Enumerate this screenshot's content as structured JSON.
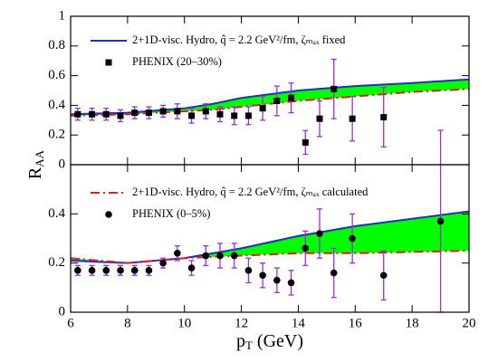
{
  "chart_data": [
    {
      "type": "line",
      "ylabel": {
        "main": "R",
        "sub": "AA"
      },
      "xlim": [
        6,
        20
      ],
      "xticks": [
        6,
        8,
        10,
        12,
        14,
        16,
        18,
        20
      ],
      "ylim": [
        0,
        1
      ],
      "yticks": [
        0,
        0.2,
        0.4,
        0.6,
        0.8,
        1
      ],
      "band_color": "#00ff00",
      "x": [
        6,
        8,
        10,
        11,
        12,
        14,
        16,
        18,
        20
      ],
      "series": [
        {
          "name": "2+1D-visc. Hydro, q̂ = 2.2 GeV²/fm, ζₘₐₓ fixed",
          "color": "#1f2fbf",
          "style": "solid",
          "values": [
            0.34,
            0.35,
            0.38,
            0.41,
            0.45,
            0.5,
            0.53,
            0.55,
            0.575
          ]
        },
        {
          "color": "#e02020",
          "style": "dashdot",
          "values": [
            0.33,
            0.34,
            0.36,
            0.37,
            0.39,
            0.43,
            0.46,
            0.49,
            0.51
          ]
        }
      ],
      "points": {
        "name": "PHENIX (20–30%)",
        "marker": "square",
        "color": "#000000",
        "error_color": "#9b30d9",
        "x": [
          6.25,
          6.75,
          7.25,
          7.75,
          8.25,
          8.75,
          9.25,
          9.75,
          10.25,
          10.75,
          11.25,
          11.75,
          12.25,
          12.75,
          13.25,
          13.75,
          14.25,
          14.75,
          15.25,
          15.9,
          17
        ],
        "values": [
          0.34,
          0.34,
          0.34,
          0.33,
          0.35,
          0.35,
          0.36,
          0.36,
          0.33,
          0.36,
          0.34,
          0.33,
          0.33,
          0.38,
          0.43,
          0.45,
          0.15,
          0.31,
          0.51,
          0.31,
          0.32
        ],
        "errors": [
          0.04,
          0.04,
          0.04,
          0.04,
          0.04,
          0.04,
          0.04,
          0.05,
          0.05,
          0.05,
          0.05,
          0.06,
          0.06,
          0.08,
          0.1,
          0.1,
          0.08,
          0.12,
          0.2,
          0.15,
          0.2
        ]
      }
    },
    {
      "type": "line",
      "xlabel": {
        "main": "p",
        "sub": "T",
        "rest": " (GeV)"
      },
      "xlim": [
        6,
        20
      ],
      "xticks": [
        6,
        8,
        10,
        12,
        14,
        16,
        18,
        20
      ],
      "ylim": [
        0,
        0.6
      ],
      "yticks": [
        0,
        0.2,
        0.4
      ],
      "band_color": "#00ff00",
      "x": [
        6,
        8,
        10,
        12,
        14,
        16,
        18,
        20
      ],
      "series": [
        {
          "color": "#1f2fbf",
          "style": "solid",
          "values": [
            0.21,
            0.2,
            0.22,
            0.26,
            0.31,
            0.35,
            0.38,
            0.41
          ]
        },
        {
          "name": "2+1D-visc. Hydro, q̂ = 2.2 GeV²/fm, ζₘₐₓ calculated",
          "color": "#e02020",
          "style": "dashdot",
          "values": [
            0.22,
            0.2,
            0.22,
            0.23,
            0.24,
            0.24,
            0.245,
            0.25
          ]
        }
      ],
      "points": {
        "name": "PHENIX (0–5%)",
        "marker": "circle",
        "color": "#000000",
        "error_color": "#9b30d9",
        "x": [
          6.25,
          6.75,
          7.25,
          7.75,
          8.25,
          8.75,
          9.25,
          9.75,
          10.25,
          10.75,
          11.25,
          11.75,
          12.25,
          12.75,
          13.25,
          13.75,
          14.25,
          14.75,
          15.25,
          15.9,
          17,
          19
        ],
        "values": [
          0.17,
          0.17,
          0.17,
          0.17,
          0.17,
          0.17,
          0.2,
          0.24,
          0.18,
          0.23,
          0.23,
          0.23,
          0.17,
          0.15,
          0.13,
          0.12,
          0.26,
          0.32,
          0.16,
          0.3,
          0.15,
          0.37
        ],
        "errors": [
          0.02,
          0.02,
          0.02,
          0.02,
          0.02,
          0.02,
          0.02,
          0.03,
          0.03,
          0.04,
          0.05,
          0.05,
          0.05,
          0.05,
          0.05,
          0.05,
          0.07,
          0.1,
          0.1,
          0.1,
          0.1,
          0.37
        ]
      }
    }
  ]
}
